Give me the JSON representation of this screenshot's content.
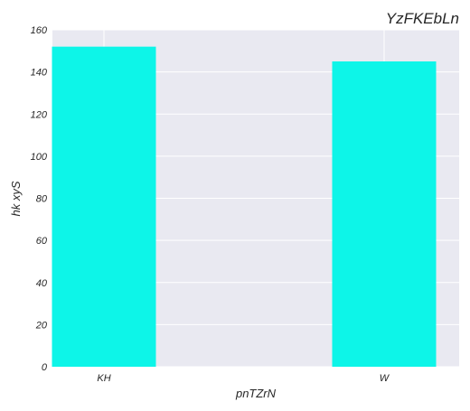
{
  "chart_data": {
    "type": "bar",
    "title": "YzFKEbLn",
    "xlabel": "pnTZrN",
    "ylabel": "hk xyS",
    "categories": [
      "KH",
      "W"
    ],
    "values": [
      152,
      145
    ],
    "ylim": [
      0,
      160
    ],
    "yticks": [
      0,
      20,
      40,
      60,
      80,
      100,
      120,
      140,
      160
    ],
    "grid": true,
    "bar_color": "#0df5e8",
    "background_color": "#e9e9f1",
    "grid_color": "#ffffff"
  }
}
